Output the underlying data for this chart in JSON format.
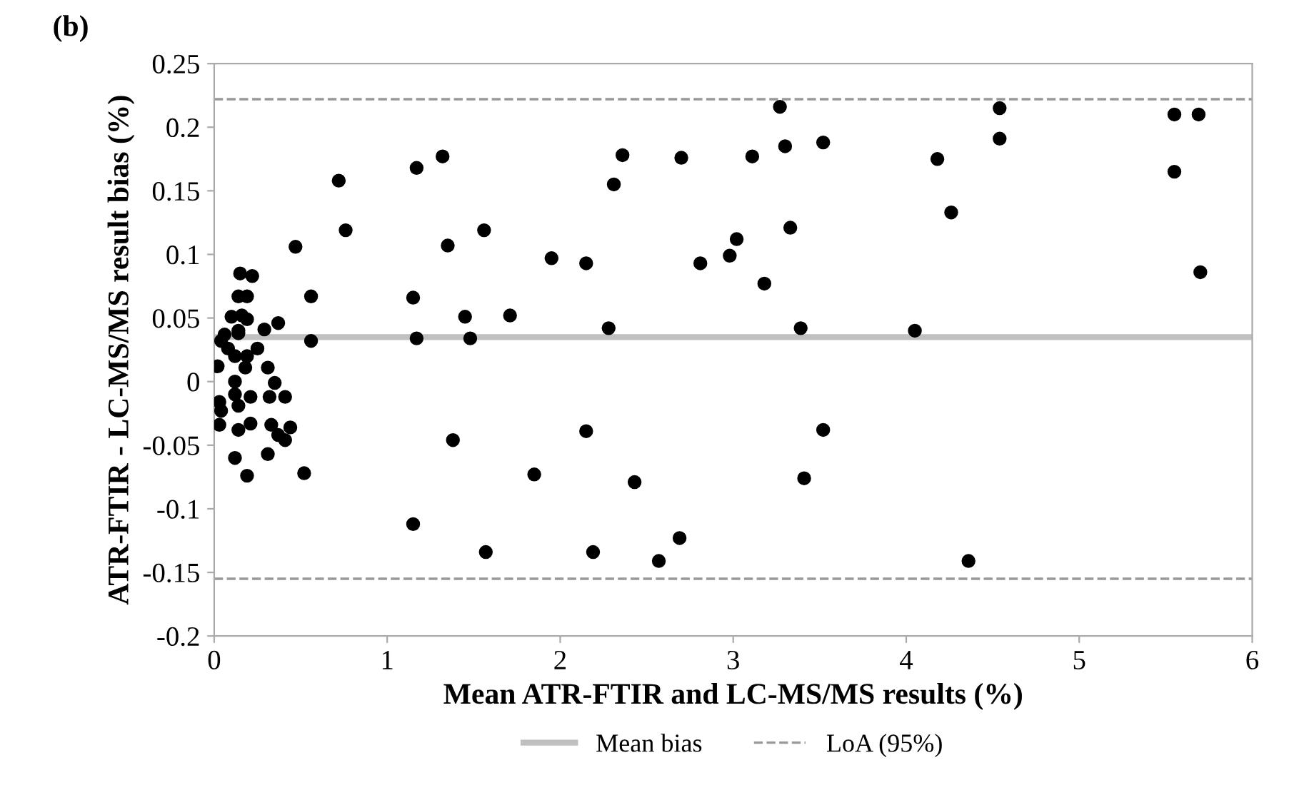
{
  "chart_data": {
    "type": "scatter",
    "title": "(b)",
    "xlabel": "Mean ATR-FTIR and LC-MS/MS results (%)",
    "ylabel": "ATR-FTIR - LC-MS/MS result bias (%)",
    "xlim": [
      0,
      6
    ],
    "ylim": [
      -0.2,
      0.25
    ],
    "xticks": [
      0,
      1,
      2,
      3,
      4,
      5,
      6
    ],
    "yticks": [
      -0.2,
      -0.15,
      -0.1,
      -0.05,
      0,
      0.05,
      0.1,
      0.15,
      0.2,
      0.25
    ],
    "grid": false,
    "legend": "bottom",
    "marker": "circle",
    "series": [
      {
        "color": "#000000",
        "x": [
          0.47,
          0.15,
          0.22,
          0.14,
          0.19,
          0.56,
          0.1,
          0.16,
          0.19,
          0.37,
          0.29,
          0.14,
          0.06,
          0.14,
          0.04,
          0.56,
          0.08,
          0.25,
          0.12,
          0.19,
          0.02,
          0.18,
          0.31,
          0.12,
          0.35,
          0.12,
          0.03,
          0.21,
          0.32,
          0.41,
          0.04,
          0.14,
          0.03,
          0.14,
          0.21,
          0.33,
          0.44,
          0.37,
          0.41,
          0.12,
          0.31,
          0.19,
          0.52,
          0.72,
          0.76,
          1.17,
          1.32,
          1.15,
          1.17,
          1.35,
          1.38,
          1.15,
          1.45,
          1.48,
          1.56,
          1.57,
          1.71,
          1.85,
          1.95,
          2.15,
          2.15,
          2.19,
          2.28,
          2.31,
          2.36,
          2.43,
          2.57,
          2.69,
          2.7,
          2.81,
          2.98,
          3.02,
          3.11,
          3.18,
          3.27,
          3.3,
          3.33,
          3.39,
          3.41,
          3.52,
          3.52,
          4.05,
          4.18,
          4.26,
          4.36,
          4.54,
          4.54,
          5.55,
          5.55,
          5.69,
          5.7
        ],
        "values": [
          0.106,
          0.085,
          0.083,
          0.067,
          0.067,
          0.067,
          0.051,
          0.052,
          0.049,
          0.046,
          0.041,
          0.038,
          0.037,
          0.04,
          0.032,
          0.032,
          0.026,
          0.026,
          0.02,
          0.02,
          0.012,
          0.011,
          0.011,
          0.0,
          -0.001,
          -0.01,
          -0.016,
          -0.012,
          -0.012,
          -0.012,
          -0.023,
          -0.019,
          -0.034,
          -0.038,
          -0.033,
          -0.034,
          -0.036,
          -0.042,
          -0.046,
          -0.06,
          -0.057,
          -0.074,
          -0.072,
          0.158,
          0.119,
          0.168,
          0.177,
          0.066,
          0.034,
          0.107,
          -0.046,
          -0.112,
          0.051,
          0.034,
          0.119,
          -0.134,
          0.052,
          -0.073,
          0.097,
          0.093,
          -0.039,
          -0.134,
          0.042,
          0.155,
          0.178,
          -0.079,
          -0.141,
          -0.123,
          0.176,
          0.093,
          0.099,
          0.112,
          0.177,
          0.077,
          0.216,
          0.185,
          0.121,
          0.042,
          -0.076,
          0.188,
          -0.038,
          0.04,
          0.175,
          0.133,
          -0.141,
          0.215,
          0.191,
          0.21,
          0.165,
          0.21,
          0.086
        ]
      }
    ],
    "ref_lines": [
      {
        "axis": "y",
        "value": 0.035,
        "label": "Mean bias",
        "color": "#c0c0c0",
        "line_style": "solid"
      },
      {
        "axis": "y",
        "value": 0.222,
        "label": "LoA (95%)",
        "color": "#999999",
        "line_style": "dashed"
      },
      {
        "axis": "y",
        "value": -0.155,
        "color": "#999999",
        "line_style": "dashed"
      }
    ]
  }
}
